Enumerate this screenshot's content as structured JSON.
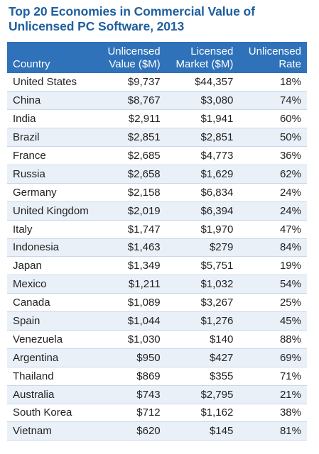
{
  "title": {
    "line1": "Top 20 Economies in Commercial Value of",
    "line2": "Unlicensed PC Software, 2013"
  },
  "colors": {
    "title": "#1f5f9e",
    "header_bg": "#2f72ba",
    "header_text": "#ffffff",
    "row_alt_bg": "#eaf0f8"
  },
  "table": {
    "headers": {
      "country": [
        "Country"
      ],
      "unlicensed_value": [
        "Unlicensed",
        "Value ($M)"
      ],
      "licensed_market": [
        "Licensed",
        "Market ($M)"
      ],
      "unlicensed_rate": [
        "Unlicensed",
        "Rate"
      ]
    },
    "rows": [
      {
        "country": "United States",
        "unlicensed_value": "$9,737",
        "licensed_market": "$44,357",
        "unlicensed_rate": "18%"
      },
      {
        "country": "China",
        "unlicensed_value": "$8,767",
        "licensed_market": "$3,080",
        "unlicensed_rate": "74%"
      },
      {
        "country": "India",
        "unlicensed_value": "$2,911",
        "licensed_market": "$1,941",
        "unlicensed_rate": "60%"
      },
      {
        "country": "Brazil",
        "unlicensed_value": "$2,851",
        "licensed_market": "$2,851",
        "unlicensed_rate": "50%"
      },
      {
        "country": "France",
        "unlicensed_value": "$2,685",
        "licensed_market": "$4,773",
        "unlicensed_rate": "36%"
      },
      {
        "country": "Russia",
        "unlicensed_value": "$2,658",
        "licensed_market": "$1,629",
        "unlicensed_rate": "62%"
      },
      {
        "country": "Germany",
        "unlicensed_value": "$2,158",
        "licensed_market": "$6,834",
        "unlicensed_rate": "24%"
      },
      {
        "country": "United Kingdom",
        "unlicensed_value": "$2,019",
        "licensed_market": "$6,394",
        "unlicensed_rate": "24%"
      },
      {
        "country": "Italy",
        "unlicensed_value": "$1,747",
        "licensed_market": "$1,970",
        "unlicensed_rate": "47%"
      },
      {
        "country": "Indonesia",
        "unlicensed_value": "$1,463",
        "licensed_market": "$279",
        "unlicensed_rate": "84%"
      },
      {
        "country": "Japan",
        "unlicensed_value": "$1,349",
        "licensed_market": "$5,751",
        "unlicensed_rate": "19%"
      },
      {
        "country": "Mexico",
        "unlicensed_value": "$1,211",
        "licensed_market": "$1,032",
        "unlicensed_rate": "54%"
      },
      {
        "country": "Canada",
        "unlicensed_value": "$1,089",
        "licensed_market": "$3,267",
        "unlicensed_rate": "25%"
      },
      {
        "country": "Spain",
        "unlicensed_value": "$1,044",
        "licensed_market": "$1,276",
        "unlicensed_rate": "45%"
      },
      {
        "country": "Venezuela",
        "unlicensed_value": "$1,030",
        "licensed_market": "$140",
        "unlicensed_rate": "88%"
      },
      {
        "country": "Argentina",
        "unlicensed_value": "$950",
        "licensed_market": "$427",
        "unlicensed_rate": "69%"
      },
      {
        "country": "Thailand",
        "unlicensed_value": "$869",
        "licensed_market": "$355",
        "unlicensed_rate": "71%"
      },
      {
        "country": "Australia",
        "unlicensed_value": "$743",
        "licensed_market": "$2,795",
        "unlicensed_rate": "21%"
      },
      {
        "country": "South Korea",
        "unlicensed_value": "$712",
        "licensed_market": "$1,162",
        "unlicensed_rate": "38%"
      },
      {
        "country": "Vietnam",
        "unlicensed_value": "$620",
        "licensed_market": "$145",
        "unlicensed_rate": "81%"
      }
    ]
  }
}
